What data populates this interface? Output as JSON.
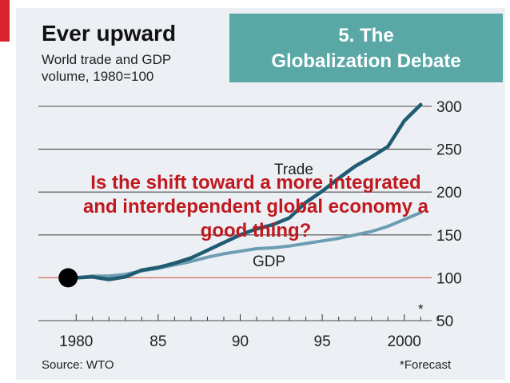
{
  "header": {
    "title": "Ever upward",
    "subtitle_line1": "World trade and GDP",
    "subtitle_line2": "volume, 1980=100"
  },
  "overlay": {
    "section_line1": "5. The",
    "section_line2": "Globalization Debate",
    "question_line1": "Is the shift toward a more integrated",
    "question_line2": "and interdependent global economy a",
    "question_line3": "good thing?"
  },
  "footer": {
    "source": "Source: WTO",
    "forecast_note": "*Forecast",
    "forecast_marker": "*"
  },
  "colors": {
    "trade_line": "#1f5b72",
    "gdp_line": "#6d9db2",
    "baseline": "#d36a5b",
    "accent_red": "#d8232a",
    "question_text": "#c0191f",
    "section_box": "#5aa8a6"
  },
  "chart_data": {
    "type": "line",
    "title": "Ever upward",
    "subtitle": "World trade and GDP volume, 1980=100",
    "x": [
      1980,
      1981,
      1982,
      1983,
      1984,
      1985,
      1986,
      1987,
      1988,
      1989,
      1990,
      1991,
      1992,
      1993,
      1994,
      1995,
      1996,
      1997,
      1998,
      1999,
      2000,
      2001
    ],
    "series": [
      {
        "name": "Trade",
        "values": [
          100,
          101,
          98,
          101,
          109,
          112,
          117,
          123,
          132,
          141,
          150,
          157,
          162,
          170,
          188,
          201,
          216,
          230,
          241,
          253,
          283,
          302
        ]
      },
      {
        "name": "GDP",
        "values": [
          100,
          102,
          102,
          104,
          108,
          111,
          115,
          119,
          124,
          128,
          131,
          134,
          135,
          137,
          140,
          143,
          146,
          150,
          154,
          160,
          168,
          176
        ]
      }
    ],
    "x_ticks": [
      1980,
      1985,
      1990,
      1995,
      2000
    ],
    "x_tick_labels": [
      "1980",
      "85",
      "90",
      "95",
      "2000"
    ],
    "y_ticks": [
      50,
      100,
      150,
      200,
      250,
      300
    ],
    "y_tick_labels": [
      "50",
      "100",
      "150",
      "200",
      "250",
      "300"
    ],
    "xlim": [
      1979.5,
      2002.4
    ],
    "ylim": [
      50,
      300
    ],
    "baseline_value": 100,
    "grid": true,
    "y_axis_side": "right",
    "start_marker": {
      "x": 1980,
      "y": 100
    },
    "forecast_year": 2001
  }
}
